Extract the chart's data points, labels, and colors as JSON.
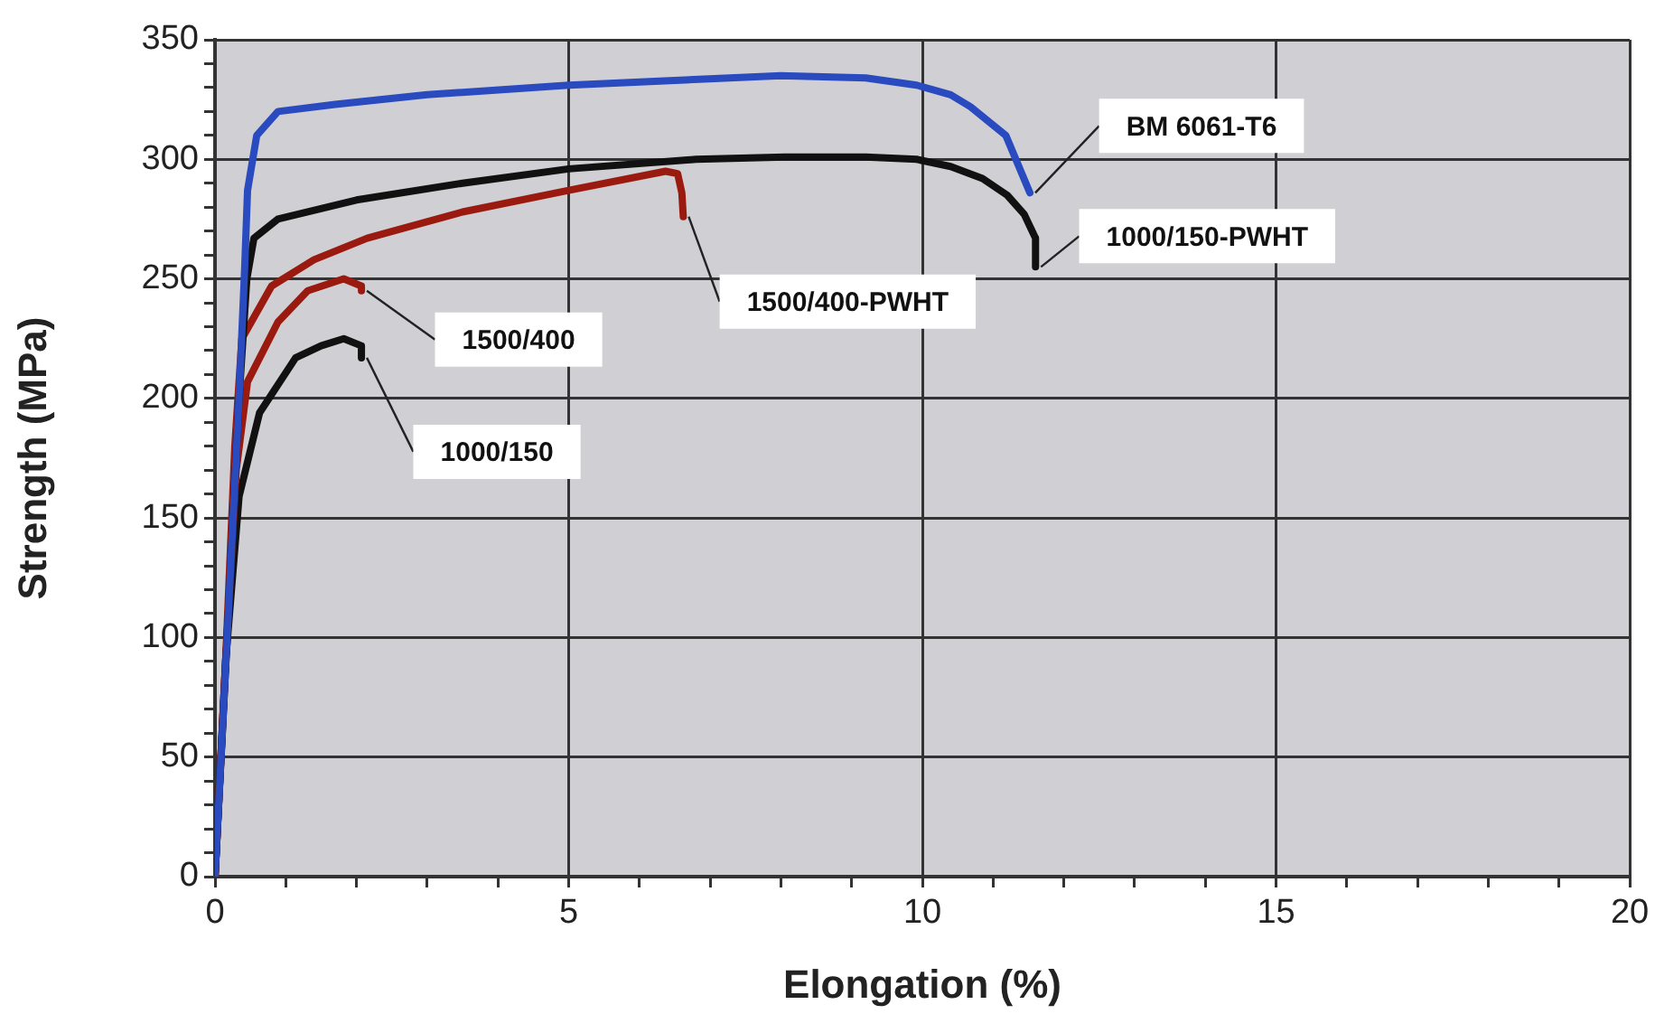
{
  "chart_data": {
    "type": "line",
    "xlabel": "Elongation (%)",
    "ylabel": "Strength (MPa)",
    "xlim": [
      0,
      20
    ],
    "ylim": [
      0,
      350
    ],
    "xticks": [
      0,
      {
        "value": 1,
        "label": null
      },
      {
        "value": 2,
        "label": null
      },
      {
        "value": 3,
        "label": null
      },
      {
        "value": 4,
        "label": null
      },
      5,
      {
        "value": 6,
        "label": null
      },
      {
        "value": 7,
        "label": null
      },
      {
        "value": 8,
        "label": null
      },
      {
        "value": 9,
        "label": null
      },
      10,
      {
        "value": 11,
        "label": null
      },
      {
        "value": 12,
        "label": null
      },
      {
        "value": 13,
        "label": null
      },
      {
        "value": 14,
        "label": null
      },
      15,
      {
        "value": 16,
        "label": null
      },
      {
        "value": 17,
        "label": null
      },
      {
        "value": 18,
        "label": null
      },
      {
        "value": 19,
        "label": null
      },
      20
    ],
    "yticks": [
      0,
      {
        "value": 10,
        "label": null
      },
      {
        "value": 20,
        "label": null
      },
      {
        "value": 30,
        "label": null
      },
      {
        "value": 40,
        "label": null
      },
      50,
      {
        "value": 60,
        "label": null
      },
      {
        "value": 70,
        "label": null
      },
      {
        "value": 80,
        "label": null
      },
      {
        "value": 90,
        "label": null
      },
      100,
      {
        "value": 110,
        "label": null
      },
      {
        "value": 120,
        "label": null
      },
      {
        "value": 130,
        "label": null
      },
      {
        "value": 140,
        "label": null
      },
      150,
      {
        "value": 160,
        "label": null
      },
      {
        "value": 170,
        "label": null
      },
      {
        "value": 180,
        "label": null
      },
      {
        "value": 190,
        "label": null
      },
      200,
      {
        "value": 210,
        "label": null
      },
      {
        "value": 220,
        "label": null
      },
      {
        "value": 230,
        "label": null
      },
      {
        "value": 240,
        "label": null
      },
      250,
      {
        "value": 260,
        "label": null
      },
      {
        "value": 270,
        "label": null
      },
      {
        "value": 280,
        "label": null
      },
      {
        "value": 290,
        "label": null
      },
      300,
      {
        "value": 310,
        "label": null
      },
      {
        "value": 320,
        "label": null
      },
      {
        "value": 330,
        "label": null
      },
      {
        "value": 340,
        "label": null
      },
      350
    ],
    "grid": true,
    "legend": false,
    "marker": "none",
    "line_style": "solid",
    "series": [
      {
        "name": "BM 6061-T6",
        "color": "#2a4bc0",
        "x": [
          0,
          0.17,
          0.34,
          0.42,
          0.46,
          0.59,
          0.89,
          1.7,
          3,
          5,
          6.5,
          8,
          9.2,
          9.92,
          10.4,
          10.68,
          11.18,
          11.52
        ],
        "values": [
          0,
          99,
          200,
          255,
          287,
          310,
          320,
          323,
          327,
          331,
          333,
          335,
          334,
          331,
          327,
          322,
          310,
          286
        ]
      },
      {
        "name": "1000/150-PWHT",
        "color": "#111111",
        "x": [
          0,
          0.17,
          0.34,
          0.45,
          0.55,
          0.89,
          2,
          3.5,
          5,
          6.8,
          8.06,
          9.2,
          9.92,
          10.4,
          10.85,
          11.2,
          11.44,
          11.6,
          11.6
        ],
        "values": [
          0,
          99,
          200,
          250,
          267,
          275,
          283,
          290,
          296,
          300,
          301,
          301,
          300,
          297,
          292,
          285,
          277,
          267,
          255
        ]
      },
      {
        "name": "1500/400-PWHT",
        "color": "#9b1a10",
        "x": [
          0,
          0.15,
          0.28,
          0.38,
          0.8,
          1.4,
          2.15,
          3.5,
          5,
          6.37,
          6.54,
          6.6,
          6.62
        ],
        "values": [
          0,
          90,
          180,
          225,
          247,
          258,
          267,
          278,
          287,
          295,
          294,
          286,
          276
        ]
      },
      {
        "name": "1500/400",
        "color": "#9b1a10",
        "x": [
          0,
          0.15,
          0.3,
          0.46,
          0.89,
          1.31,
          1.82,
          2.07,
          2.07
        ],
        "values": [
          0,
          90,
          170,
          207,
          232,
          245,
          250,
          247,
          245
        ]
      },
      {
        "name": "1000/150",
        "color": "#111111",
        "x": [
          0,
          0.15,
          0.34,
          0.63,
          1.14,
          1.5,
          1.82,
          2.07,
          2.07
        ],
        "values": [
          0,
          90,
          159,
          194,
          217,
          222,
          225,
          222,
          217
        ]
      }
    ]
  }
}
